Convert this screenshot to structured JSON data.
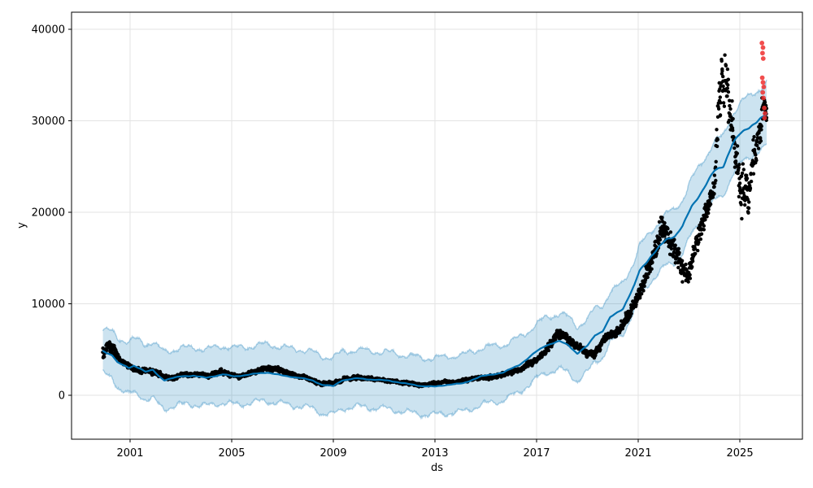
{
  "chart_data": {
    "type": "scatter",
    "title": "",
    "subtitle": "",
    "xlabel": "ds",
    "ylabel": "y",
    "grid": true,
    "legend": "none",
    "description": "Prophet-style time-series forecast: black dots = observed daily values y, dark blue line = forecast yhat, light blue band = uncertainty interval, red dots = recent anomalous observations near 2026.",
    "x_axis": {
      "ticks": [
        2001,
        2005,
        2009,
        2013,
        2017,
        2021,
        2025
      ],
      "range": [
        1998.696,
        2027.462
      ]
    },
    "y_axis": {
      "ticks": [
        0,
        10000,
        20000,
        30000,
        40000
      ],
      "range": [
        -4800,
        41867
      ]
    },
    "colors": {
      "actual": "#000000",
      "forecast": "#0072B2",
      "band_fill": "rgba(0,114,178,0.2)",
      "band_edge": "rgba(0,114,178,0.3)",
      "anomaly": "#ee2e2e",
      "grid": "#e3e3e3",
      "spine": "#000000",
      "text": "#000000"
    },
    "series": {
      "domain": [
        1999.93,
        2026.06
      ],
      "step_years": 0.019,
      "trend_yhat": [
        [
          1999.95,
          4800
        ],
        [
          2000.1,
          4550
        ],
        [
          2000.3,
          4400
        ],
        [
          2000.5,
          3650
        ],
        [
          2000.7,
          3350
        ],
        [
          2000.95,
          2950
        ],
        [
          2001.15,
          3200
        ],
        [
          2001.4,
          2950
        ],
        [
          2001.6,
          2600
        ],
        [
          2001.9,
          2750
        ],
        [
          2002.1,
          2150
        ],
        [
          2002.35,
          1650
        ],
        [
          2002.6,
          1850
        ],
        [
          2003.0,
          2050
        ],
        [
          2003.5,
          2150
        ],
        [
          2004.0,
          1900
        ],
        [
          2004.65,
          2300
        ],
        [
          2005.1,
          2050
        ],
        [
          2005.8,
          2300
        ],
        [
          2006.4,
          2500
        ],
        [
          2007.0,
          2150
        ],
        [
          2007.7,
          1900
        ],
        [
          2008.2,
          1600
        ],
        [
          2008.55,
          1150
        ],
        [
          2009.0,
          1000
        ],
        [
          2009.35,
          1650
        ],
        [
          2009.95,
          1850
        ],
        [
          2010.6,
          1700
        ],
        [
          2011.2,
          1600
        ],
        [
          2011.9,
          1250
        ],
        [
          2012.5,
          1000
        ],
        [
          2013.0,
          950
        ],
        [
          2013.5,
          1150
        ],
        [
          2014.1,
          1300
        ],
        [
          2014.8,
          2050
        ],
        [
          2015.7,
          2500
        ],
        [
          2016.3,
          3300
        ],
        [
          2016.6,
          3900
        ],
        [
          2017.0,
          4800
        ],
        [
          2017.35,
          5450
        ],
        [
          2017.9,
          5900
        ],
        [
          2018.25,
          5500
        ],
        [
          2018.6,
          4550
        ],
        [
          2019.0,
          5400
        ],
        [
          2019.3,
          6600
        ],
        [
          2019.6,
          7000
        ],
        [
          2019.9,
          8500
        ],
        [
          2020.4,
          9500
        ],
        [
          2020.85,
          12000
        ],
        [
          2021.05,
          13600
        ],
        [
          2021.5,
          15200
        ],
        [
          2022.1,
          17000
        ],
        [
          2022.45,
          17450
        ],
        [
          2022.75,
          18500
        ],
        [
          2023.1,
          20600
        ],
        [
          2023.5,
          22300
        ],
        [
          2024.0,
          24500
        ],
        [
          2024.35,
          25100
        ],
        [
          2024.7,
          27400
        ],
        [
          2025.0,
          28500
        ],
        [
          2025.3,
          29250
        ],
        [
          2025.9,
          30300
        ],
        [
          2026.05,
          30700
        ]
      ],
      "band_halfwidth": [
        [
          1999.95,
          2400
        ],
        [
          2001.0,
          2900
        ],
        [
          2002.0,
          3100
        ],
        [
          2015.0,
          3100
        ],
        [
          2016.5,
          2950
        ],
        [
          2018.0,
          3050
        ],
        [
          2020.0,
          2800
        ],
        [
          2021.5,
          2700
        ],
        [
          2023.0,
          3000
        ],
        [
          2024.5,
          3300
        ],
        [
          2026.05,
          3400
        ]
      ],
      "band_wiggle": {
        "seasonal_amp": 470,
        "jitter_amp": 200
      },
      "actuals_median_spread": [
        [
          1999.95,
          4700,
          1000
        ],
        [
          2000.15,
          5500,
          900
        ],
        [
          2000.35,
          5100,
          900
        ],
        [
          2000.55,
          3900,
          600
        ],
        [
          2000.8,
          3300,
          450
        ],
        [
          2001.05,
          3000,
          400
        ],
        [
          2001.35,
          2600,
          350
        ],
        [
          2001.7,
          2700,
          400
        ],
        [
          2002.05,
          2600,
          400
        ],
        [
          2002.4,
          1850,
          350
        ],
        [
          2002.75,
          2000,
          300
        ],
        [
          2003.1,
          2200,
          300
        ],
        [
          2003.6,
          2300,
          350
        ],
        [
          2004.1,
          2100,
          300
        ],
        [
          2004.6,
          2500,
          350
        ],
        [
          2005.0,
          2150,
          300
        ],
        [
          2005.5,
          2250,
          300
        ],
        [
          2006.0,
          2550,
          350
        ],
        [
          2006.45,
          3000,
          400
        ],
        [
          2006.8,
          2800,
          350
        ],
        [
          2007.2,
          2350,
          300
        ],
        [
          2007.7,
          2100,
          300
        ],
        [
          2008.1,
          1800,
          300
        ],
        [
          2008.5,
          1250,
          300
        ],
        [
          2009.0,
          1350,
          300
        ],
        [
          2009.4,
          1750,
          300
        ],
        [
          2010.0,
          1950,
          300
        ],
        [
          2010.5,
          1800,
          250
        ],
        [
          2011.0,
          1700,
          250
        ],
        [
          2011.5,
          1500,
          250
        ],
        [
          2012.0,
          1350,
          250
        ],
        [
          2012.5,
          1100,
          250
        ],
        [
          2013.0,
          1300,
          250
        ],
        [
          2013.5,
          1450,
          250
        ],
        [
          2014.0,
          1550,
          250
        ],
        [
          2014.5,
          1850,
          300
        ],
        [
          2015.0,
          1950,
          300
        ],
        [
          2015.5,
          2150,
          300
        ],
        [
          2016.0,
          2450,
          350
        ],
        [
          2016.5,
          3050,
          400
        ],
        [
          2016.9,
          3650,
          400
        ],
        [
          2017.2,
          4350,
          450
        ],
        [
          2017.5,
          5600,
          700
        ],
        [
          2017.8,
          6800,
          700
        ],
        [
          2018.1,
          6600,
          600
        ],
        [
          2018.4,
          5900,
          600
        ],
        [
          2018.7,
          5200,
          500
        ],
        [
          2019.0,
          4700,
          550
        ],
        [
          2019.3,
          4700,
          500
        ],
        [
          2019.6,
          5900,
          600
        ],
        [
          2019.9,
          6600,
          600
        ],
        [
          2020.2,
          7000,
          800
        ],
        [
          2020.5,
          8300,
          900
        ],
        [
          2020.8,
          9900,
          900
        ],
        [
          2021.1,
          11600,
          1100
        ],
        [
          2021.4,
          13600,
          1300
        ],
        [
          2021.7,
          16200,
          1600
        ],
        [
          2021.95,
          19000,
          3000
        ],
        [
          2022.15,
          17500,
          2000
        ],
        [
          2022.45,
          16500,
          1800
        ],
        [
          2022.7,
          14200,
          1800
        ],
        [
          2022.95,
          13000,
          1400
        ],
        [
          2023.2,
          15500,
          1500
        ],
        [
          2023.5,
          18500,
          1700
        ],
        [
          2023.8,
          20800,
          1500
        ],
        [
          2023.95,
          23500,
          2000
        ],
        [
          2024.1,
          29000,
          3200
        ],
        [
          2024.3,
          34500,
          4400
        ],
        [
          2024.5,
          33500,
          4000
        ],
        [
          2024.7,
          29500,
          3500
        ],
        [
          2024.9,
          24500,
          4200
        ],
        [
          2025.15,
          21500,
          4300
        ],
        [
          2025.35,
          22500,
          3500
        ],
        [
          2025.55,
          25500,
          3000
        ],
        [
          2025.75,
          28500,
          2800
        ],
        [
          2025.95,
          31500,
          2400
        ],
        [
          2026.05,
          31000,
          2000
        ]
      ],
      "anomalies": [
        [
          2025.87,
          38500
        ],
        [
          2025.91,
          38000
        ],
        [
          2025.89,
          37400
        ],
        [
          2025.92,
          36800
        ],
        [
          2025.88,
          34700
        ],
        [
          2025.91,
          34200
        ],
        [
          2025.94,
          33700
        ],
        [
          2025.9,
          33100
        ],
        [
          2025.93,
          32500
        ],
        [
          2025.96,
          31400
        ],
        [
          2025.99,
          30800
        ],
        [
          2025.97,
          30300
        ]
      ],
      "marker_radius": 2.2,
      "anomaly_radius": 2.9,
      "points_per_step": 2,
      "line_width": 2.2
    }
  }
}
